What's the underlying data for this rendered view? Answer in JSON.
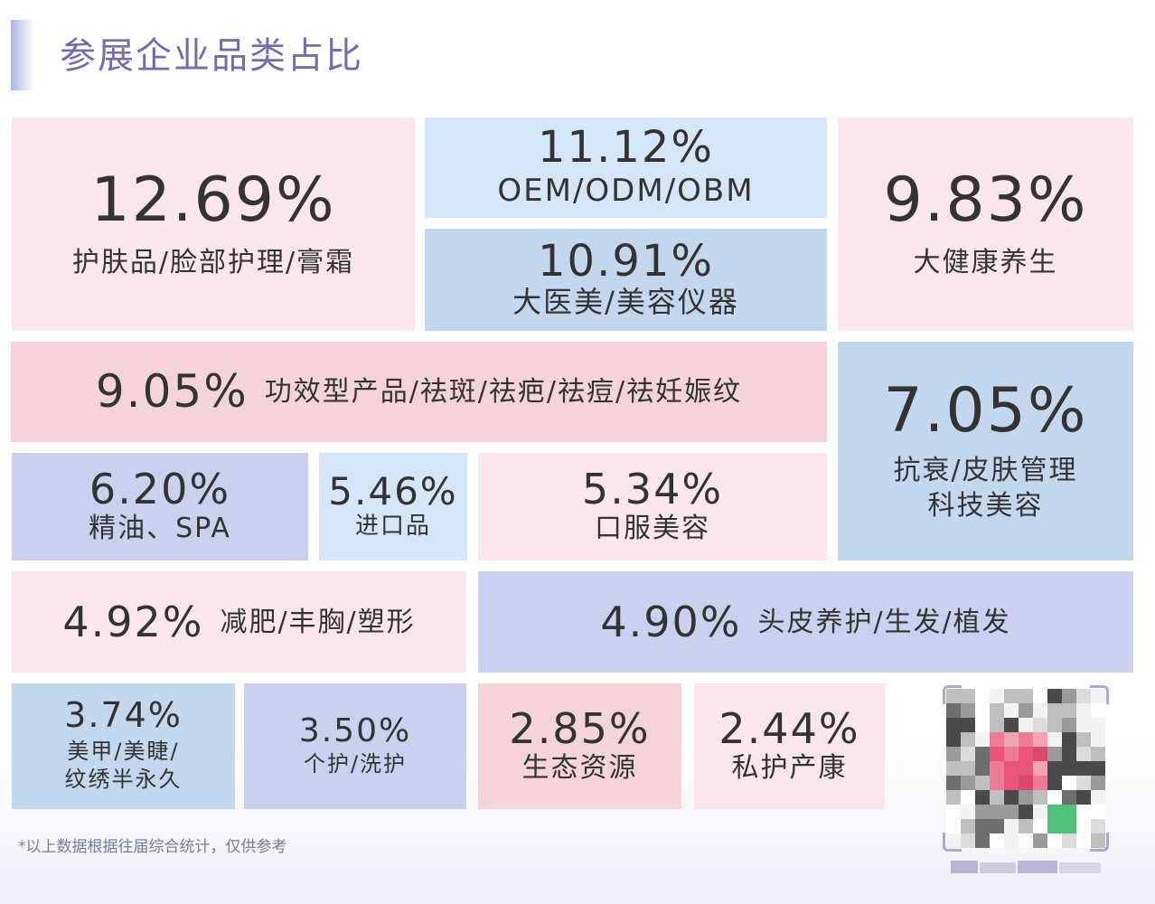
{
  "title": "参展企业品类占比",
  "footnote": "*以上数据根据往届综合统计，仅供参考",
  "colors": {
    "pink": "#fbe6eb",
    "light_blue": "#d4e6f8",
    "mid_blue": "#c3d7ee",
    "salmon": "#f4d3d9",
    "lavender": "#c9d1ef",
    "title": "#6f6fb0",
    "accent": "#aeb5e2"
  },
  "chart_data": {
    "type": "treemap",
    "unit": "%",
    "items": [
      {
        "label": "护肤品/脸部护理/膏霜",
        "value": 12.69,
        "display": "12.69%"
      },
      {
        "label": "OEM/ODM/OBM",
        "value": 11.12,
        "display": "11.12%"
      },
      {
        "label": "大医美/美容仪器",
        "value": 10.91,
        "display": "10.91%"
      },
      {
        "label": "大健康养生",
        "value": 9.83,
        "display": "9.83%"
      },
      {
        "label": "功效型产品/祛斑/祛疤/祛痘/祛妊娠纹",
        "value": 9.05,
        "display": "9.05%"
      },
      {
        "label": "抗衰/皮肤管理\n科技美容",
        "value": 7.05,
        "display": "7.05%"
      },
      {
        "label": "精油、SPA",
        "value": 6.2,
        "display": "6.20%"
      },
      {
        "label": "进口品",
        "value": 5.46,
        "display": "5.46%"
      },
      {
        "label": "口服美容",
        "value": 5.34,
        "display": "5.34%"
      },
      {
        "label": "减肥/丰胸/塑形",
        "value": 4.92,
        "display": "4.92%"
      },
      {
        "label": "头皮养护/生发/植发",
        "value": 4.9,
        "display": "4.90%"
      },
      {
        "label": "美甲/美睫/\n纹绣半永久",
        "value": 3.74,
        "display": "3.74%"
      },
      {
        "label": "个护/洗护",
        "value": 3.5,
        "display": "3.50%"
      },
      {
        "label": "生态资源",
        "value": 2.85,
        "display": "2.85%"
      },
      {
        "label": "私护产康",
        "value": 2.44,
        "display": "2.44%"
      }
    ]
  }
}
